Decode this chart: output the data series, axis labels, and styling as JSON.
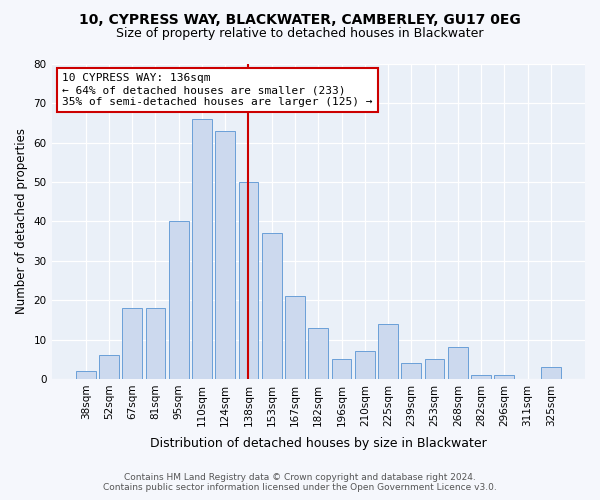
{
  "title1": "10, CYPRESS WAY, BLACKWATER, CAMBERLEY, GU17 0EG",
  "title2": "Size of property relative to detached houses in Blackwater",
  "xlabel": "Distribution of detached houses by size in Blackwater",
  "ylabel": "Number of detached properties",
  "categories": [
    "38sqm",
    "52sqm",
    "67sqm",
    "81sqm",
    "95sqm",
    "110sqm",
    "124sqm",
    "138sqm",
    "153sqm",
    "167sqm",
    "182sqm",
    "196sqm",
    "210sqm",
    "225sqm",
    "239sqm",
    "253sqm",
    "268sqm",
    "282sqm",
    "296sqm",
    "311sqm",
    "325sqm"
  ],
  "bar_values": [
    2,
    6,
    18,
    18,
    40,
    66,
    63,
    50,
    37,
    21,
    13,
    5,
    7,
    14,
    4,
    5,
    8,
    1,
    1,
    0,
    3
  ],
  "bar_color": "#ccd9ee",
  "bar_edge_color": "#6a9fd8",
  "vline_index": 7,
  "vline_color": "#cc0000",
  "annotation_title": "10 CYPRESS WAY: 136sqm",
  "annotation_line1": "← 64% of detached houses are smaller (233)",
  "annotation_line2": "35% of semi-detached houses are larger (125) →",
  "ann_box_fc": "#ffffff",
  "ann_box_ec": "#cc0000",
  "ylim": [
    0,
    80
  ],
  "yticks": [
    0,
    10,
    20,
    30,
    40,
    50,
    60,
    70,
    80
  ],
  "footer1": "Contains HM Land Registry data © Crown copyright and database right 2024.",
  "footer2": "Contains public sector information licensed under the Open Government Licence v3.0.",
  "fig_bg": "#f5f7fc",
  "plot_bg": "#eaf0f8",
  "grid_color": "#ffffff"
}
